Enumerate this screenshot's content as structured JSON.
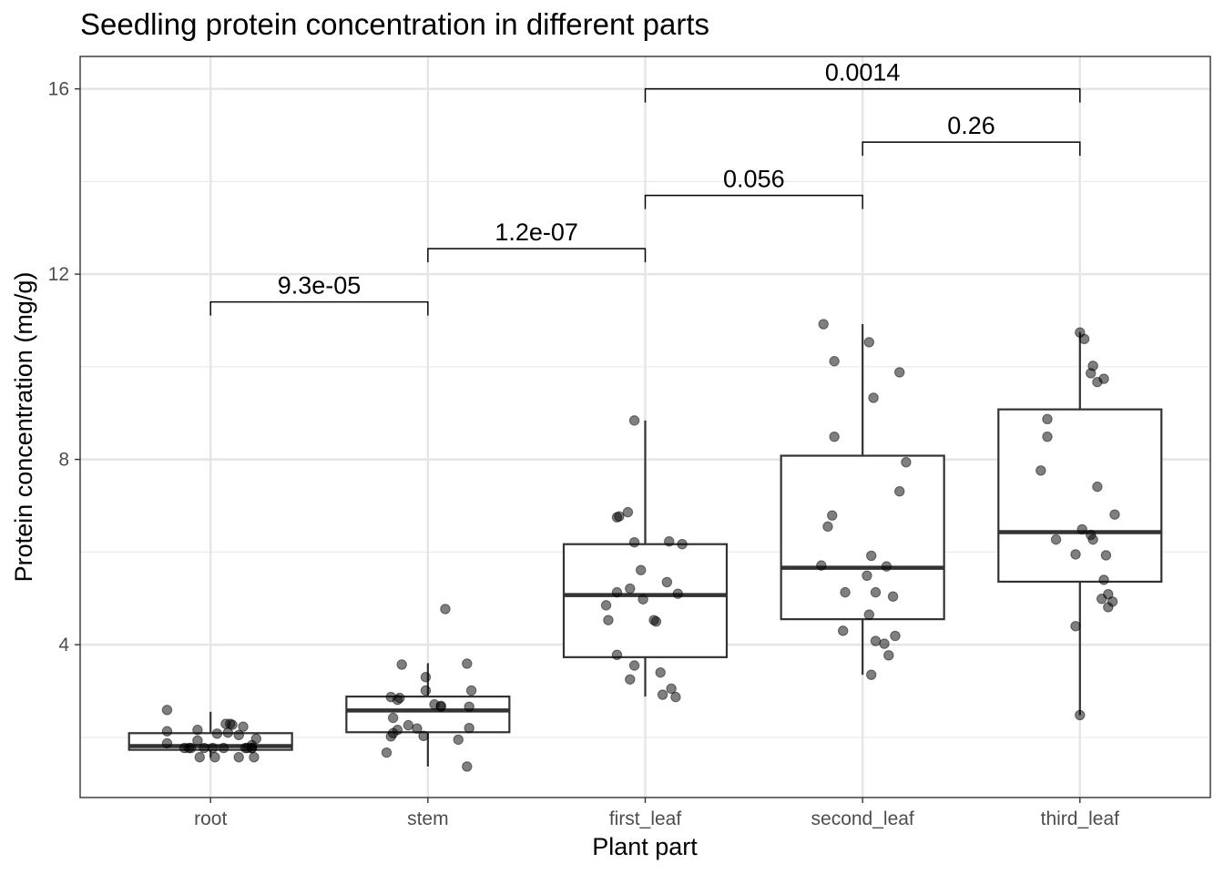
{
  "chart_data": {
    "type": "boxplot",
    "title": "Seedling protein concentration in different parts",
    "xlabel": "Plant part",
    "ylabel": "Protein concentration (mg/g)",
    "ylim": [
      0.7,
      16.7
    ],
    "y_ticks": [
      4,
      8,
      12,
      16
    ],
    "categories": [
      "root",
      "stem",
      "first_leaf",
      "second_leaf",
      "third_leaf"
    ],
    "boxes": [
      {
        "category": "root",
        "whisker_low": 1.57,
        "q1": 1.73,
        "median": 1.81,
        "q3": 2.09,
        "whisker_high": 2.55
      },
      {
        "category": "stem",
        "whisker_low": 1.37,
        "q1": 2.11,
        "median": 2.58,
        "q3": 2.88,
        "whisker_high": 3.6
      },
      {
        "category": "first_leaf",
        "whisker_low": 2.88,
        "q1": 3.73,
        "median": 5.07,
        "q3": 6.17,
        "whisker_high": 8.84
      },
      {
        "category": "second_leaf",
        "whisker_low": 3.35,
        "q1": 4.55,
        "median": 5.66,
        "q3": 8.08,
        "whisker_high": 10.92
      },
      {
        "category": "third_leaf",
        "whisker_low": 2.48,
        "q1": 5.36,
        "median": 6.43,
        "q3": 9.08,
        "whisker_high": 10.75
      }
    ],
    "points": {
      "root": [
        [
          -0.2,
          2.59
        ],
        [
          -0.2,
          2.13
        ],
        [
          -0.2,
          1.87
        ],
        [
          -0.12,
          1.77
        ],
        [
          -0.1,
          1.77
        ],
        [
          -0.09,
          1.77
        ],
        [
          -0.06,
          2.16
        ],
        [
          -0.06,
          1.93
        ],
        [
          -0.05,
          1.57
        ],
        [
          -0.03,
          1.77
        ],
        [
          0.01,
          1.77
        ],
        [
          0.02,
          1.57
        ],
        [
          0.03,
          2.08
        ],
        [
          0.06,
          1.77
        ],
        [
          0.07,
          2.29
        ],
        [
          0.08,
          2.1
        ],
        [
          0.09,
          2.29
        ],
        [
          0.1,
          2.27
        ],
        [
          0.13,
          1.57
        ],
        [
          0.13,
          2.05
        ],
        [
          0.15,
          2.23
        ],
        [
          0.16,
          1.77
        ],
        [
          0.17,
          1.77
        ],
        [
          0.19,
          1.83
        ],
        [
          0.19,
          1.77
        ],
        [
          0.19,
          1.77
        ],
        [
          0.2,
          1.57
        ],
        [
          0.21,
          1.97
        ]
      ],
      "stem": [
        [
          -0.19,
          1.67
        ],
        [
          -0.17,
          2.02
        ],
        [
          -0.17,
          2.87
        ],
        [
          -0.16,
          2.09
        ],
        [
          -0.16,
          2.42
        ],
        [
          -0.14,
          2.16
        ],
        [
          -0.14,
          2.81
        ],
        [
          -0.13,
          2.85
        ],
        [
          -0.12,
          3.57
        ],
        [
          -0.09,
          2.26
        ],
        [
          -0.05,
          2.19
        ],
        [
          -0.02,
          2.03
        ],
        [
          -0.01,
          3.01
        ],
        [
          -0.01,
          3.3
        ],
        [
          0.03,
          2.71
        ],
        [
          0.06,
          2.66
        ],
        [
          0.06,
          2.68
        ],
        [
          0.08,
          4.77
        ],
        [
          0.14,
          1.95
        ],
        [
          0.18,
          3.59
        ],
        [
          0.19,
          2.2
        ],
        [
          0.19,
          2.66
        ],
        [
          0.2,
          3.01
        ],
        [
          0.18,
          1.37
        ]
      ],
      "first_leaf": [
        [
          -0.18,
          4.85
        ],
        [
          -0.17,
          4.53
        ],
        [
          -0.13,
          6.75
        ],
        [
          -0.13,
          5.13
        ],
        [
          -0.13,
          3.78
        ],
        [
          -0.12,
          6.77
        ],
        [
          -0.08,
          6.86
        ],
        [
          -0.07,
          5.21
        ],
        [
          -0.07,
          3.25
        ],
        [
          -0.05,
          3.55
        ],
        [
          -0.05,
          6.21
        ],
        [
          -0.02,
          5.61
        ],
        [
          -0.01,
          4.98
        ],
        [
          0.04,
          4.53
        ],
        [
          0.05,
          4.5
        ],
        [
          0.07,
          3.4
        ],
        [
          0.08,
          2.92
        ],
        [
          0.1,
          5.35
        ],
        [
          0.11,
          6.23
        ],
        [
          0.12,
          3.05
        ],
        [
          0.14,
          2.87
        ],
        [
          0.15,
          5.1
        ],
        [
          0.17,
          6.17
        ],
        [
          -0.05,
          8.84
        ]
      ],
      "second_leaf": [
        [
          -0.19,
          5.71
        ],
        [
          -0.18,
          10.92
        ],
        [
          -0.16,
          6.55
        ],
        [
          -0.14,
          6.79
        ],
        [
          -0.13,
          10.12
        ],
        [
          -0.13,
          8.49
        ],
        [
          -0.09,
          4.3
        ],
        [
          -0.08,
          5.13
        ],
        [
          0.02,
          5.49
        ],
        [
          0.03,
          10.53
        ],
        [
          0.03,
          4.65
        ],
        [
          0.04,
          3.35
        ],
        [
          0.04,
          5.92
        ],
        [
          0.05,
          9.33
        ],
        [
          0.06,
          4.08
        ],
        [
          0.06,
          5.13
        ],
        [
          0.1,
          4.02
        ],
        [
          0.11,
          5.69
        ],
        [
          0.12,
          3.77
        ],
        [
          0.14,
          5.04
        ],
        [
          0.15,
          4.19
        ],
        [
          0.17,
          7.31
        ],
        [
          0.17,
          9.88
        ],
        [
          0.2,
          7.94
        ]
      ],
      "third_leaf": [
        [
          -0.18,
          7.76
        ],
        [
          -0.15,
          8.49
        ],
        [
          -0.15,
          8.87
        ],
        [
          -0.11,
          6.27
        ],
        [
          -0.02,
          4.4
        ],
        [
          -0.02,
          5.95
        ],
        [
          0.0,
          10.74
        ],
        [
          0.01,
          6.49
        ],
        [
          0.02,
          10.6
        ],
        [
          0.05,
          6.37
        ],
        [
          0.05,
          9.86
        ],
        [
          0.06,
          6.27
        ],
        [
          0.06,
          10.02
        ],
        [
          0.08,
          9.67
        ],
        [
          0.08,
          7.41
        ],
        [
          0.1,
          4.99
        ],
        [
          0.11,
          9.74
        ],
        [
          0.11,
          5.4
        ],
        [
          0.12,
          5.93
        ],
        [
          0.13,
          4.81
        ],
        [
          0.13,
          5.09
        ],
        [
          0.15,
          4.93
        ],
        [
          0.16,
          6.81
        ],
        [
          0.0,
          2.48
        ]
      ]
    },
    "comparisons": [
      {
        "from": "root",
        "to": "stem",
        "label": "9.3e-05",
        "y": 11.4
      },
      {
        "from": "stem",
        "to": "first_leaf",
        "label": "1.2e-07",
        "y": 12.55
      },
      {
        "from": "first_leaf",
        "to": "second_leaf",
        "label": "0.056",
        "y": 13.7
      },
      {
        "from": "second_leaf",
        "to": "third_leaf",
        "label": "0.26",
        "y": 14.85
      },
      {
        "from": "first_leaf",
        "to": "third_leaf",
        "label": "0.0014",
        "y": 16.0
      }
    ],
    "grid": true,
    "point_color": "#000000",
    "point_opacity": 0.5,
    "box_fill": "#ffffff",
    "box_stroke": "#333333"
  }
}
